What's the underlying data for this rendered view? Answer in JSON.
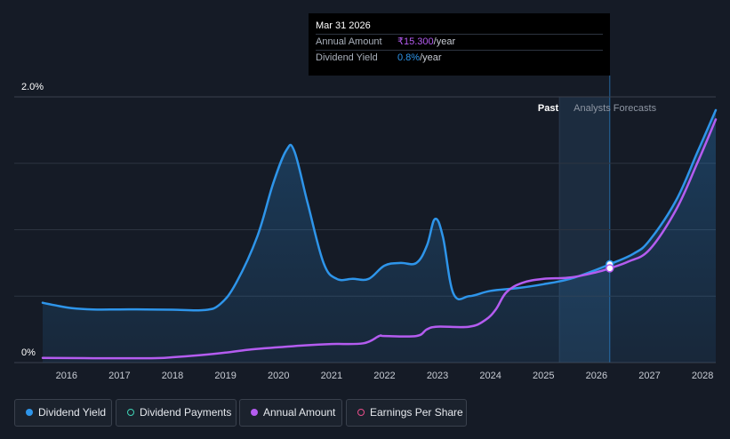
{
  "tooltip": {
    "date": "Mar 31 2026",
    "rows": [
      {
        "label": "Annual Amount",
        "value": "₹15.300",
        "unit": "/year"
      },
      {
        "label": "Dividend Yield",
        "value": "0.8%",
        "unit": "/year"
      }
    ]
  },
  "regions": {
    "past": "Past",
    "forecast": "Analysts Forecasts"
  },
  "legend": [
    {
      "label": "Dividend Yield",
      "icon": "filled-dot",
      "color": "#2e95ea"
    },
    {
      "label": "Dividend Payments",
      "icon": "hollow-dot",
      "color": "#3fd3b6"
    },
    {
      "label": "Annual Amount",
      "icon": "filled-dot",
      "color": "#b45cf0"
    },
    {
      "label": "Earnings Per Share",
      "icon": "hollow-dot",
      "color": "#e84e8a"
    }
  ],
  "colors": {
    "background": "#151b26",
    "dividend_yield": "#2e95ea",
    "annual_amount": "#b45cf0",
    "grid": "#2d3440"
  },
  "chart_data": {
    "type": "line",
    "x_ticks": [
      "2016",
      "2017",
      "2018",
      "2019",
      "2020",
      "2021",
      "2022",
      "2023",
      "2024",
      "2025",
      "2026",
      "2027",
      "2028"
    ],
    "y_ticks": [
      "0%",
      "2.0%"
    ],
    "ylim": [
      0,
      2.0
    ],
    "xlim": [
      2015.55,
      2028.25
    ],
    "grid": true,
    "past_until": 2025.3,
    "forecast_band": [
      2025.3,
      2026.25
    ],
    "marker_x": 2026.25,
    "series": [
      {
        "name": "Dividend Yield",
        "color": "#2e95ea",
        "fill": true,
        "points": [
          [
            2015.55,
            0.45
          ],
          [
            2015.8,
            0.43
          ],
          [
            2016.1,
            0.41
          ],
          [
            2016.5,
            0.4
          ],
          [
            2017.0,
            0.4
          ],
          [
            2017.5,
            0.4
          ],
          [
            2018.0,
            0.398
          ],
          [
            2018.6,
            0.395
          ],
          [
            2018.9,
            0.44
          ],
          [
            2019.2,
            0.6
          ],
          [
            2019.6,
            0.95
          ],
          [
            2019.9,
            1.35
          ],
          [
            2020.15,
            1.6
          ],
          [
            2020.3,
            1.59
          ],
          [
            2020.55,
            1.2
          ],
          [
            2020.85,
            0.75
          ],
          [
            2021.1,
            0.63
          ],
          [
            2021.4,
            0.63
          ],
          [
            2021.7,
            0.63
          ],
          [
            2022.0,
            0.73
          ],
          [
            2022.3,
            0.75
          ],
          [
            2022.6,
            0.75
          ],
          [
            2022.8,
            0.88
          ],
          [
            2022.95,
            1.08
          ],
          [
            2023.1,
            0.95
          ],
          [
            2023.3,
            0.52
          ],
          [
            2023.6,
            0.5
          ],
          [
            2024.0,
            0.54
          ],
          [
            2024.5,
            0.56
          ],
          [
            2025.0,
            0.59
          ],
          [
            2025.5,
            0.63
          ],
          [
            2026.0,
            0.7
          ],
          [
            2026.25,
            0.74
          ],
          [
            2026.7,
            0.82
          ],
          [
            2027.0,
            0.92
          ],
          [
            2027.5,
            1.22
          ],
          [
            2027.9,
            1.58
          ],
          [
            2028.25,
            1.9
          ]
        ]
      },
      {
        "name": "Annual Amount",
        "color": "#b45cf0",
        "fill": false,
        "points": [
          [
            2015.55,
            0.035
          ],
          [
            2016.5,
            0.033
          ],
          [
            2017.6,
            0.033
          ],
          [
            2018.0,
            0.04
          ],
          [
            2018.5,
            0.055
          ],
          [
            2019.0,
            0.075
          ],
          [
            2019.5,
            0.1
          ],
          [
            2020.0,
            0.115
          ],
          [
            2020.5,
            0.13
          ],
          [
            2021.0,
            0.14
          ],
          [
            2021.6,
            0.145
          ],
          [
            2021.9,
            0.2
          ],
          [
            2022.0,
            0.2
          ],
          [
            2022.6,
            0.2
          ],
          [
            2022.8,
            0.25
          ],
          [
            2023.0,
            0.27
          ],
          [
            2023.6,
            0.27
          ],
          [
            2023.9,
            0.32
          ],
          [
            2024.1,
            0.4
          ],
          [
            2024.3,
            0.53
          ],
          [
            2024.6,
            0.6
          ],
          [
            2025.0,
            0.63
          ],
          [
            2025.5,
            0.64
          ],
          [
            2026.0,
            0.68
          ],
          [
            2026.25,
            0.71
          ],
          [
            2026.6,
            0.76
          ],
          [
            2027.0,
            0.85
          ],
          [
            2027.5,
            1.15
          ],
          [
            2027.9,
            1.5
          ],
          [
            2028.25,
            1.83
          ]
        ]
      }
    ]
  }
}
